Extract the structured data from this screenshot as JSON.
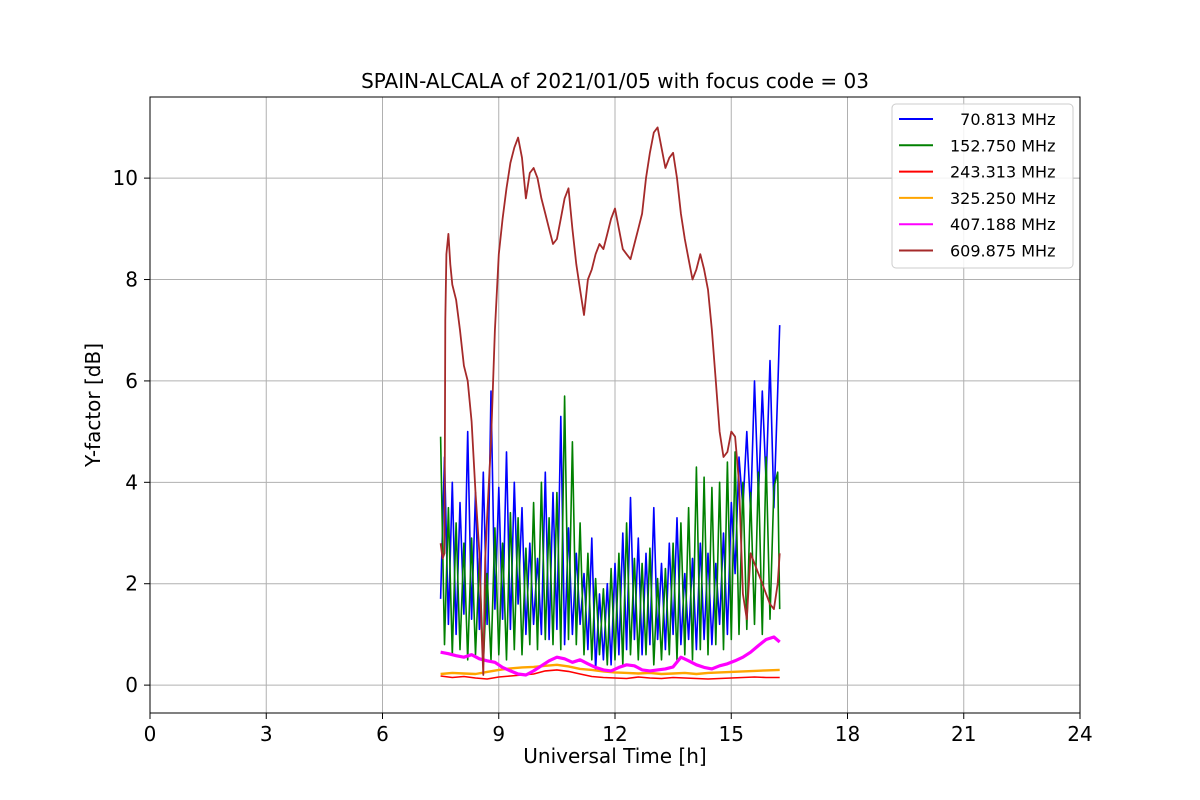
{
  "chart_data": {
    "type": "line",
    "title": "SPAIN-ALCALA of 2021/01/05 with focus code = 03",
    "xlabel": "Universal Time [h]",
    "ylabel": "Y-factor [dB]",
    "xlim": [
      0,
      24
    ],
    "ylim": [
      -0.55,
      11.6
    ],
    "xticks": [
      0,
      3,
      6,
      9,
      12,
      15,
      18,
      21,
      24
    ],
    "yticks": [
      0,
      2,
      4,
      6,
      8,
      10
    ],
    "grid": true,
    "legend_position": "top-right",
    "series": [
      {
        "name": "  70.813 MHz",
        "color": "#0000ff",
        "x": [
          7.5,
          7.6,
          7.7,
          7.8,
          7.9,
          8.0,
          8.1,
          8.2,
          8.3,
          8.4,
          8.5,
          8.6,
          8.7,
          8.8,
          8.9,
          9.0,
          9.1,
          9.2,
          9.3,
          9.4,
          9.5,
          9.6,
          9.7,
          9.8,
          9.9,
          10.0,
          10.1,
          10.2,
          10.3,
          10.4,
          10.5,
          10.6,
          10.7,
          10.8,
          10.9,
          11.0,
          11.1,
          11.2,
          11.3,
          11.4,
          11.5,
          11.6,
          11.7,
          11.8,
          11.9,
          12.0,
          12.1,
          12.2,
          12.3,
          12.4,
          12.5,
          12.6,
          12.7,
          12.8,
          12.9,
          13.0,
          13.1,
          13.2,
          13.3,
          13.4,
          13.5,
          13.6,
          13.7,
          13.8,
          13.9,
          14.0,
          14.1,
          14.2,
          14.3,
          14.4,
          14.5,
          14.6,
          14.7,
          14.8,
          14.9,
          15.0,
          15.1,
          15.2,
          15.3,
          15.4,
          15.5,
          15.6,
          15.7,
          15.8,
          15.9,
          16.0,
          16.1,
          16.2,
          16.25
        ],
        "y": [
          1.7,
          4.5,
          1.2,
          4.0,
          1.0,
          3.6,
          1.4,
          5.0,
          1.3,
          3.8,
          1.1,
          4.2,
          1.2,
          5.8,
          1.5,
          3.9,
          1.3,
          4.6,
          1.1,
          4.0,
          1.6,
          3.5,
          1.0,
          2.8,
          1.2,
          2.5,
          1.0,
          4.2,
          0.9,
          3.8,
          1.1,
          5.3,
          0.8,
          3.1,
          1.0,
          2.6,
          1.2,
          2.2,
          0.7,
          2.9,
          0.3,
          1.8,
          0.5,
          2.0,
          0.4,
          2.4,
          0.6,
          3.0,
          0.7,
          3.7,
          0.9,
          2.9,
          0.6,
          2.6,
          0.8,
          3.5,
          0.9,
          2.4,
          0.7,
          2.8,
          1.0,
          3.3,
          0.8,
          2.2,
          0.9,
          2.5,
          0.7,
          2.8,
          0.9,
          2.6,
          0.8,
          2.4,
          1.2,
          3.0,
          1.0,
          3.6,
          2.2,
          4.5,
          3.5,
          5.0,
          3.4,
          6.0,
          3.7,
          5.8,
          4.0,
          6.4,
          3.5,
          5.8,
          7.1
        ]
      },
      {
        "name": "152.750 MHz",
        "color": "#008000",
        "x": [
          7.5,
          7.6,
          7.7,
          7.8,
          7.9,
          8.0,
          8.1,
          8.2,
          8.3,
          8.4,
          8.5,
          8.6,
          8.7,
          8.8,
          8.9,
          9.0,
          9.1,
          9.2,
          9.3,
          9.4,
          9.5,
          9.6,
          9.7,
          9.8,
          9.9,
          10.0,
          10.1,
          10.2,
          10.3,
          10.4,
          10.5,
          10.6,
          10.7,
          10.8,
          10.9,
          11.0,
          11.1,
          11.2,
          11.3,
          11.4,
          11.5,
          11.6,
          11.7,
          11.8,
          11.9,
          12.0,
          12.1,
          12.2,
          12.3,
          12.4,
          12.5,
          12.6,
          12.7,
          12.8,
          12.9,
          13.0,
          13.1,
          13.2,
          13.3,
          13.4,
          13.5,
          13.6,
          13.7,
          13.8,
          13.9,
          14.0,
          14.1,
          14.2,
          14.3,
          14.4,
          14.5,
          14.6,
          14.7,
          14.8,
          14.9,
          15.0,
          15.1,
          15.2,
          15.3,
          15.4,
          15.5,
          15.6,
          15.7,
          15.8,
          15.9,
          16.0,
          16.1,
          16.2,
          16.25
        ],
        "y": [
          4.9,
          0.8,
          3.5,
          0.6,
          3.2,
          0.7,
          2.8,
          0.5,
          2.9,
          0.6,
          2.5,
          0.4,
          2.2,
          0.5,
          3.1,
          0.6,
          2.8,
          0.5,
          3.4,
          0.7,
          3.3,
          0.6,
          2.7,
          0.8,
          3.6,
          0.7,
          4.0,
          0.9,
          3.3,
          0.8,
          3.8,
          0.7,
          5.7,
          0.9,
          4.8,
          0.8,
          3.2,
          0.6,
          2.6,
          0.5,
          2.1,
          0.6,
          1.9,
          0.4,
          2.3,
          0.5,
          2.6,
          0.4,
          3.2,
          0.6,
          2.5,
          0.5,
          2.4,
          0.6,
          2.7,
          0.4,
          2.1,
          0.5,
          2.3,
          0.6,
          2.8,
          0.5,
          3.2,
          0.6,
          3.5,
          0.5,
          4.3,
          0.7,
          4.1,
          0.6,
          3.9,
          0.8,
          4.0,
          0.7,
          4.4,
          0.9,
          4.6,
          1.0,
          4.0,
          1.1,
          3.8,
          1.2,
          4.2,
          1.0,
          4.5,
          1.3,
          3.9,
          4.2,
          1.5
        ]
      },
      {
        "name": "243.313 MHz",
        "color": "#ff0000",
        "x": [
          7.5,
          7.8,
          8.1,
          8.4,
          8.7,
          9.0,
          9.3,
          9.6,
          9.9,
          10.2,
          10.5,
          10.8,
          11.1,
          11.4,
          11.7,
          12.0,
          12.3,
          12.6,
          12.9,
          13.2,
          13.5,
          13.8,
          14.1,
          14.4,
          14.7,
          15.0,
          15.3,
          15.6,
          15.9,
          16.25
        ],
        "y": [
          0.18,
          0.15,
          0.17,
          0.14,
          0.12,
          0.16,
          0.18,
          0.2,
          0.22,
          0.28,
          0.3,
          0.27,
          0.22,
          0.17,
          0.15,
          0.14,
          0.13,
          0.16,
          0.14,
          0.13,
          0.15,
          0.14,
          0.13,
          0.12,
          0.13,
          0.14,
          0.15,
          0.16,
          0.15,
          0.15
        ]
      },
      {
        "name": "325.250 MHz",
        "color": "#ffa500",
        "x": [
          7.5,
          7.8,
          8.1,
          8.4,
          8.7,
          9.0,
          9.3,
          9.6,
          9.9,
          10.2,
          10.5,
          10.8,
          11.1,
          11.4,
          11.7,
          12.0,
          12.3,
          12.6,
          12.9,
          13.2,
          13.5,
          13.8,
          14.1,
          14.4,
          14.7,
          15.0,
          15.3,
          15.6,
          15.9,
          16.25
        ],
        "y": [
          0.22,
          0.24,
          0.23,
          0.22,
          0.26,
          0.3,
          0.33,
          0.35,
          0.36,
          0.38,
          0.4,
          0.37,
          0.32,
          0.3,
          0.27,
          0.25,
          0.24,
          0.23,
          0.24,
          0.22,
          0.23,
          0.24,
          0.22,
          0.24,
          0.25,
          0.26,
          0.27,
          0.28,
          0.29,
          0.3
        ]
      },
      {
        "name": "407.188 MHz",
        "color": "#ff00ff",
        "x": [
          7.5,
          7.7,
          7.9,
          8.1,
          8.3,
          8.5,
          8.7,
          8.9,
          9.1,
          9.3,
          9.5,
          9.7,
          9.9,
          10.1,
          10.3,
          10.5,
          10.7,
          10.9,
          11.1,
          11.3,
          11.5,
          11.7,
          11.9,
          12.1,
          12.3,
          12.5,
          12.7,
          12.9,
          13.1,
          13.3,
          13.5,
          13.7,
          13.9,
          14.1,
          14.3,
          14.5,
          14.7,
          14.9,
          15.1,
          15.3,
          15.5,
          15.7,
          15.9,
          16.1,
          16.25
        ],
        "y": [
          0.65,
          0.62,
          0.58,
          0.55,
          0.6,
          0.52,
          0.48,
          0.45,
          0.35,
          0.28,
          0.22,
          0.2,
          0.28,
          0.38,
          0.48,
          0.55,
          0.52,
          0.45,
          0.5,
          0.42,
          0.35,
          0.3,
          0.28,
          0.35,
          0.4,
          0.38,
          0.3,
          0.28,
          0.3,
          0.32,
          0.36,
          0.55,
          0.48,
          0.4,
          0.35,
          0.32,
          0.38,
          0.42,
          0.48,
          0.55,
          0.65,
          0.78,
          0.9,
          0.95,
          0.85
        ]
      },
      {
        "name": "609.875 MHz",
        "color": "#a52a2a",
        "x": [
          7.5,
          7.55,
          7.6,
          7.62,
          7.65,
          7.7,
          7.75,
          7.8,
          7.9,
          8.0,
          8.1,
          8.2,
          8.3,
          8.4,
          8.5,
          8.55,
          8.6,
          8.65,
          8.7,
          8.8,
          8.9,
          9.0,
          9.1,
          9.2,
          9.3,
          9.4,
          9.5,
          9.6,
          9.7,
          9.8,
          9.9,
          10.0,
          10.1,
          10.2,
          10.3,
          10.4,
          10.5,
          10.6,
          10.7,
          10.8,
          10.9,
          11.0,
          11.1,
          11.2,
          11.3,
          11.4,
          11.5,
          11.6,
          11.7,
          11.8,
          11.9,
          12.0,
          12.1,
          12.2,
          12.3,
          12.4,
          12.5,
          12.6,
          12.7,
          12.8,
          12.9,
          13.0,
          13.1,
          13.2,
          13.3,
          13.4,
          13.5,
          13.6,
          13.7,
          13.8,
          13.9,
          14.0,
          14.1,
          14.2,
          14.3,
          14.4,
          14.5,
          14.6,
          14.7,
          14.8,
          14.9,
          15.0,
          15.1,
          15.2,
          15.3,
          15.4,
          15.5,
          15.6,
          15.7,
          15.8,
          15.9,
          16.0,
          16.1,
          16.2,
          16.25
        ],
        "y": [
          2.8,
          2.5,
          2.6,
          7.2,
          8.5,
          8.9,
          8.3,
          7.9,
          7.6,
          7.0,
          6.3,
          6.0,
          5.2,
          3.8,
          2.6,
          1.2,
          0.2,
          2.5,
          3.3,
          4.8,
          7.0,
          8.5,
          9.2,
          9.8,
          10.3,
          10.6,
          10.8,
          10.4,
          9.6,
          10.1,
          10.2,
          10.0,
          9.6,
          9.3,
          9.0,
          8.7,
          8.8,
          9.2,
          9.6,
          9.8,
          9.0,
          8.3,
          7.8,
          7.3,
          8.0,
          8.2,
          8.5,
          8.7,
          8.6,
          8.9,
          9.2,
          9.4,
          9.0,
          8.6,
          8.5,
          8.4,
          8.7,
          9.0,
          9.3,
          10.0,
          10.5,
          10.9,
          11.0,
          10.6,
          10.2,
          10.4,
          10.5,
          10.0,
          9.3,
          8.8,
          8.4,
          8.0,
          8.2,
          8.5,
          8.2,
          7.8,
          7.0,
          6.0,
          5.0,
          4.5,
          4.6,
          5.0,
          4.9,
          4.0,
          1.8,
          1.3,
          2.6,
          2.4,
          2.2,
          2.0,
          1.8,
          1.6,
          1.5,
          2.0,
          2.6
        ]
      }
    ]
  }
}
